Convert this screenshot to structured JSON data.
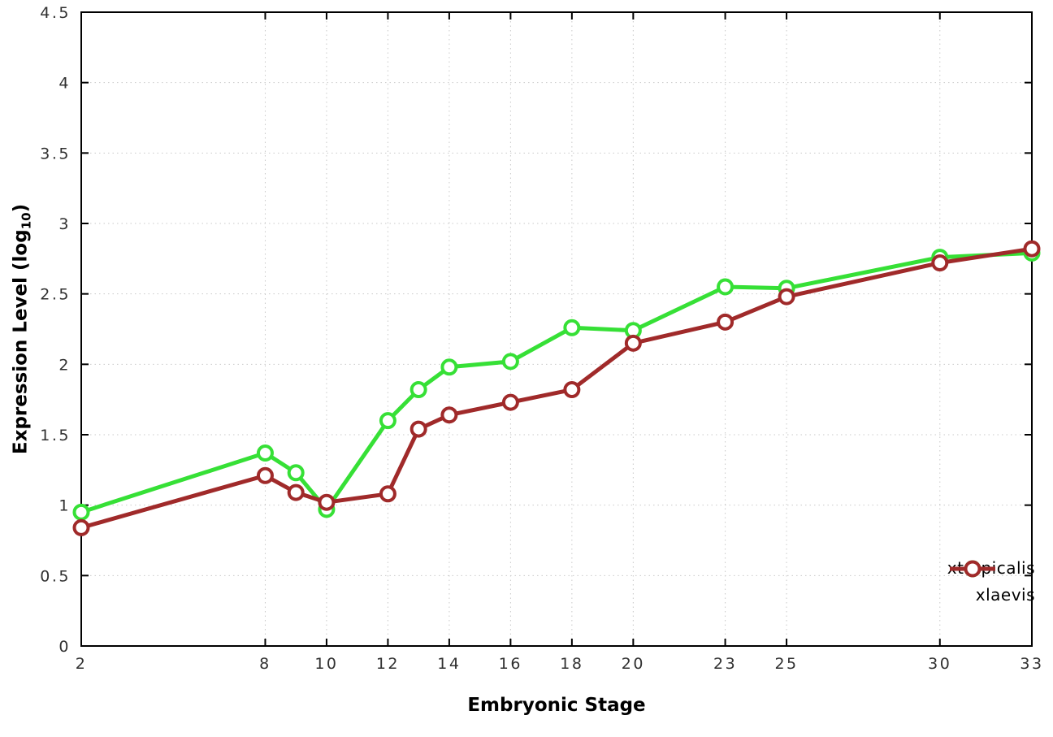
{
  "chart_data": {
    "type": "line",
    "x": [
      2,
      8,
      9,
      10,
      12,
      13,
      14,
      16,
      18,
      20,
      23,
      25,
      30,
      33
    ],
    "series": [
      {
        "name": "xtropicalis",
        "color": "#36e036",
        "values": [
          0.95,
          1.37,
          1.23,
          0.97,
          1.6,
          1.82,
          1.98,
          2.02,
          2.26,
          2.24,
          2.55,
          2.54,
          2.76,
          2.79
        ]
      },
      {
        "name": "xlaevis",
        "color": "#a02a2a",
        "values": [
          0.84,
          1.21,
          1.09,
          1.02,
          1.08,
          1.54,
          1.64,
          1.73,
          1.82,
          2.15,
          2.3,
          2.48,
          2.72,
          2.82
        ]
      }
    ],
    "title": "",
    "xlabel": "Embryonic Stage",
    "ylabel": {
      "main": "Expression Level (log",
      "sub": "10",
      "close": ")"
    },
    "xlim": [
      2,
      33
    ],
    "ylim": [
      0,
      4.5
    ],
    "xticks": [
      2,
      8,
      10,
      12,
      14,
      16,
      18,
      20,
      23,
      25,
      30,
      33
    ],
    "yticks": [
      0,
      0.5,
      1,
      1.5,
      2,
      2.5,
      3,
      3.5,
      4,
      4.5
    ],
    "grid": true,
    "legend_position": "bottom-right",
    "legend": [
      "xtropicalis",
      "xlaevis"
    ]
  },
  "styles": {
    "background": "#ffffff",
    "grid_color": "#c9c9c9",
    "axis_color": "#000000",
    "marker_fill": "#ffffff"
  }
}
